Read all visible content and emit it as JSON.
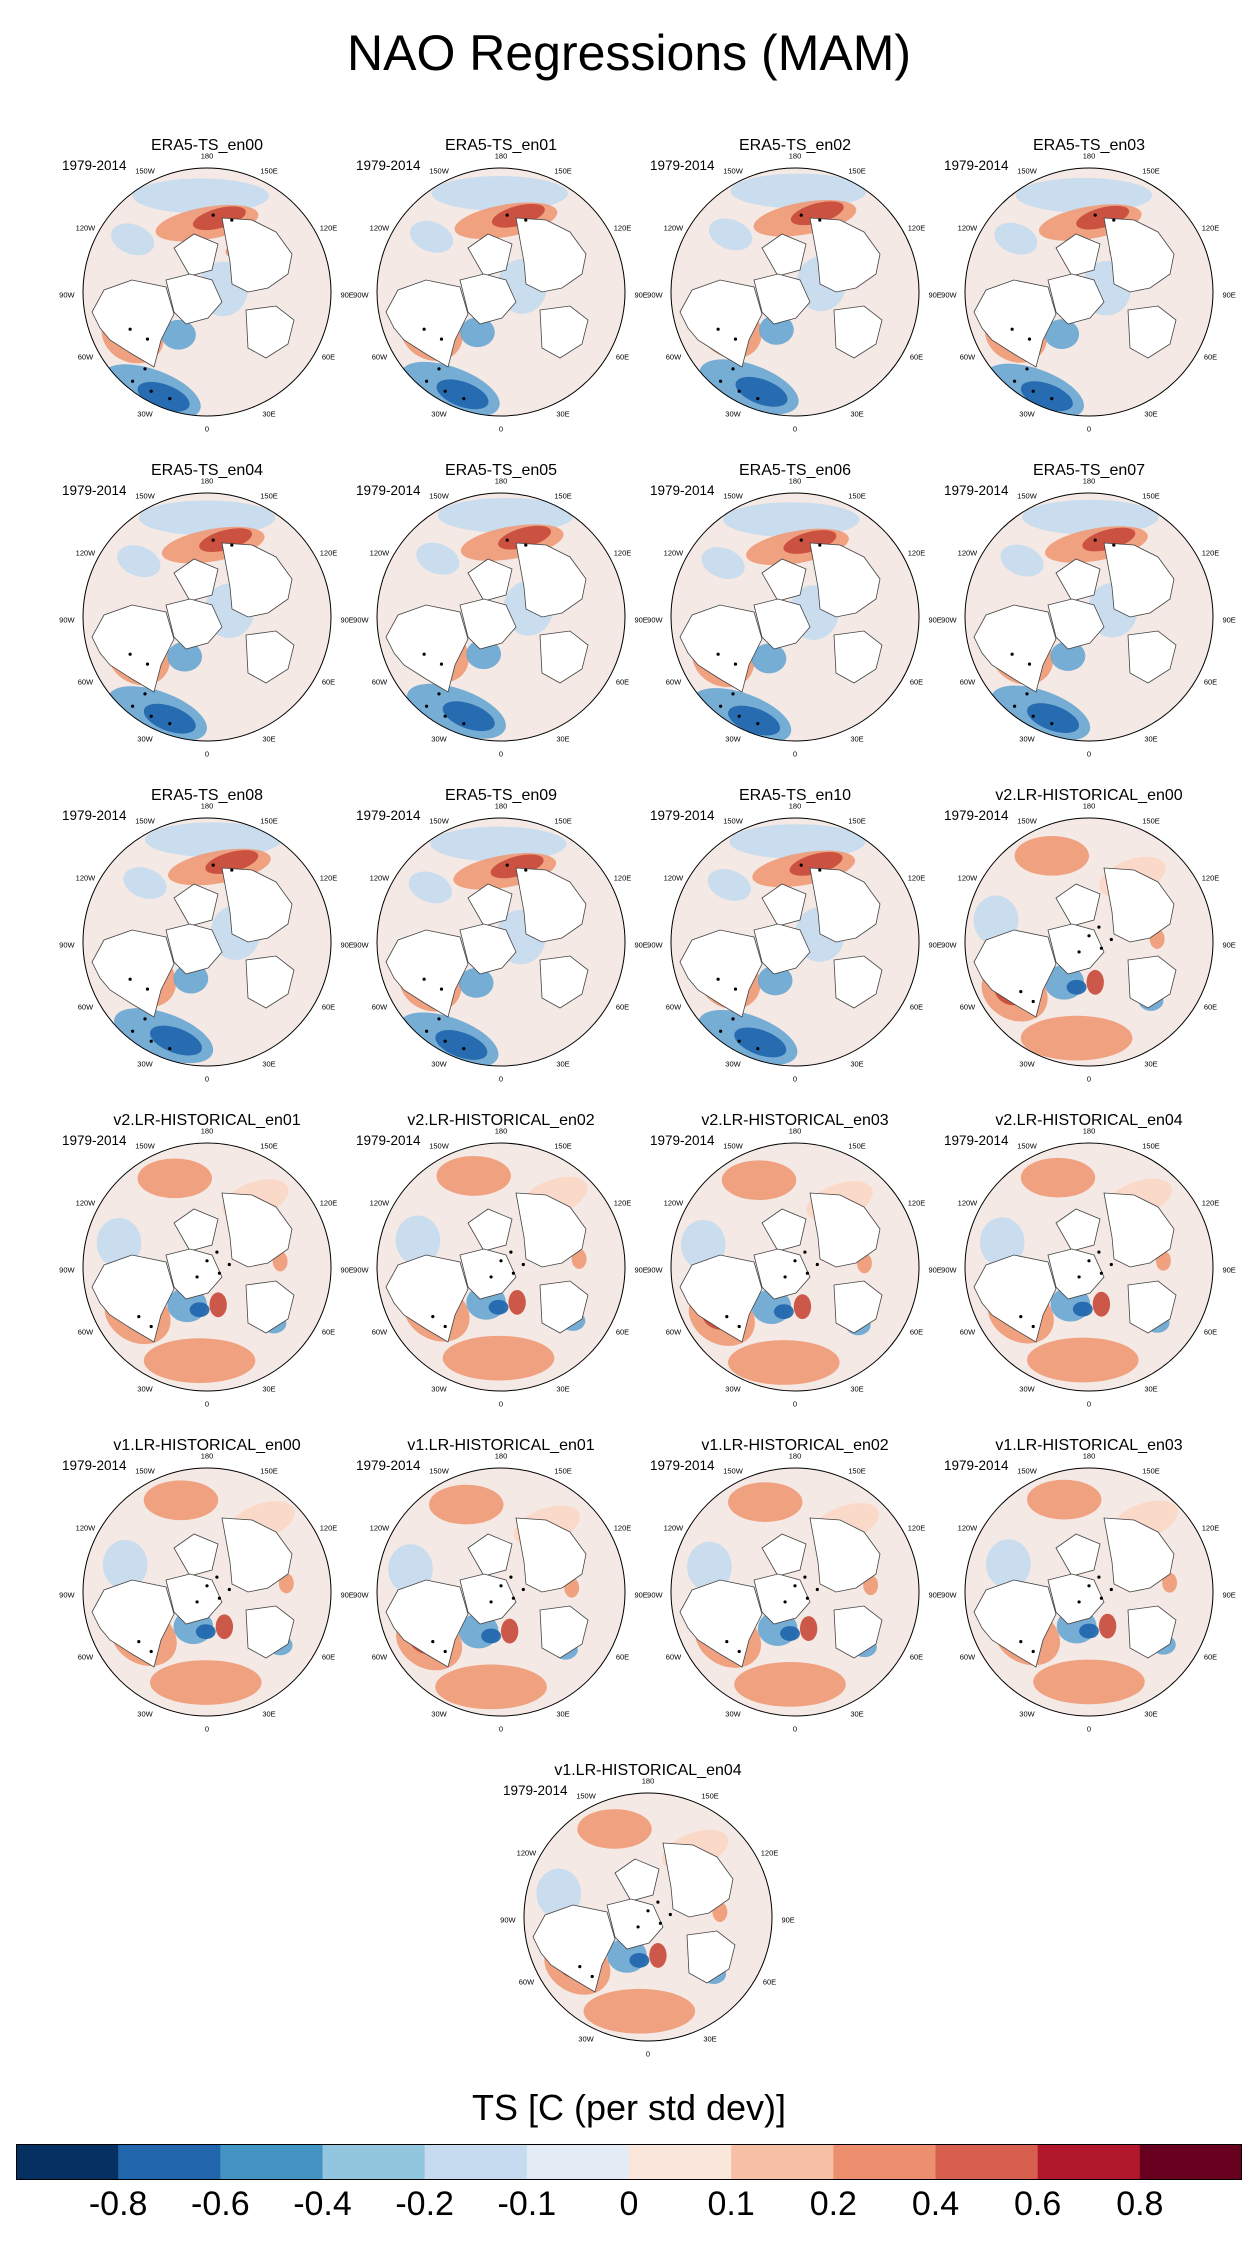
{
  "chart_data": {
    "type": "map",
    "title": "NAO Regressions (MAM)",
    "variable_label": "TS [C (per std dev)]",
    "period": "1979-2014",
    "projection": "north polar stereographic",
    "longitude_labels": [
      "180",
      "150E",
      "120E",
      "90E",
      "60E",
      "30E",
      "0",
      "30W",
      "60W",
      "90W",
      "120W",
      "150W"
    ],
    "panels": [
      {
        "name": "ERA5-TS_en00",
        "period": "1979-2014",
        "pattern": "era5"
      },
      {
        "name": "ERA5-TS_en01",
        "period": "1979-2014",
        "pattern": "era5"
      },
      {
        "name": "ERA5-TS_en02",
        "period": "1979-2014",
        "pattern": "era5"
      },
      {
        "name": "ERA5-TS_en03",
        "period": "1979-2014",
        "pattern": "era5"
      },
      {
        "name": "ERA5-TS_en04",
        "period": "1979-2014",
        "pattern": "era5"
      },
      {
        "name": "ERA5-TS_en05",
        "period": "1979-2014",
        "pattern": "era5"
      },
      {
        "name": "ERA5-TS_en06",
        "period": "1979-2014",
        "pattern": "era5"
      },
      {
        "name": "ERA5-TS_en07",
        "period": "1979-2014",
        "pattern": "era5"
      },
      {
        "name": "ERA5-TS_en08",
        "period": "1979-2014",
        "pattern": "era5"
      },
      {
        "name": "ERA5-TS_en09",
        "period": "1979-2014",
        "pattern": "era5"
      },
      {
        "name": "ERA5-TS_en10",
        "period": "1979-2014",
        "pattern": "era5"
      },
      {
        "name": "v2.LR-HISTORICAL_en00",
        "period": "1979-2014",
        "pattern": "model"
      },
      {
        "name": "v2.LR-HISTORICAL_en01",
        "period": "1979-2014",
        "pattern": "model"
      },
      {
        "name": "v2.LR-HISTORICAL_en02",
        "period": "1979-2014",
        "pattern": "model"
      },
      {
        "name": "v2.LR-HISTORICAL_en03",
        "period": "1979-2014",
        "pattern": "model"
      },
      {
        "name": "v2.LR-HISTORICAL_en04",
        "period": "1979-2014",
        "pattern": "model"
      },
      {
        "name": "v1.LR-HISTORICAL_en00",
        "period": "1979-2014",
        "pattern": "model"
      },
      {
        "name": "v1.LR-HISTORICAL_en01",
        "period": "1979-2014",
        "pattern": "model"
      },
      {
        "name": "v1.LR-HISTORICAL_en02",
        "period": "1979-2014",
        "pattern": "model"
      },
      {
        "name": "v1.LR-HISTORICAL_en03",
        "period": "1979-2014",
        "pattern": "model"
      },
      {
        "name": "v1.LR-HISTORICAL_en04",
        "period": "1979-2014",
        "pattern": "model"
      }
    ],
    "colorbar": {
      "labels": [
        "-0.8",
        "-0.6",
        "-0.4",
        "-0.2",
        "-0.1",
        "0",
        "0.1",
        "0.2",
        "0.4",
        "0.6",
        "0.8"
      ],
      "colors": [
        "#053061",
        "#2166ac",
        "#4393c3",
        "#92c5de",
        "#c6dbef",
        "#e3ecf4",
        "#fbe6dc",
        "#f7c0a6",
        "#eb8f6e",
        "#d6604d",
        "#b2182b",
        "#67001f"
      ]
    },
    "contour_colors": {
      "strong_neg": "#2166ac",
      "neg": "#6aa7d4",
      "weak_neg": "#c6dbef",
      "weak_pos": "#fbd7c6",
      "pos": "#ef9a77",
      "strong_pos": "#c84b3c"
    }
  }
}
